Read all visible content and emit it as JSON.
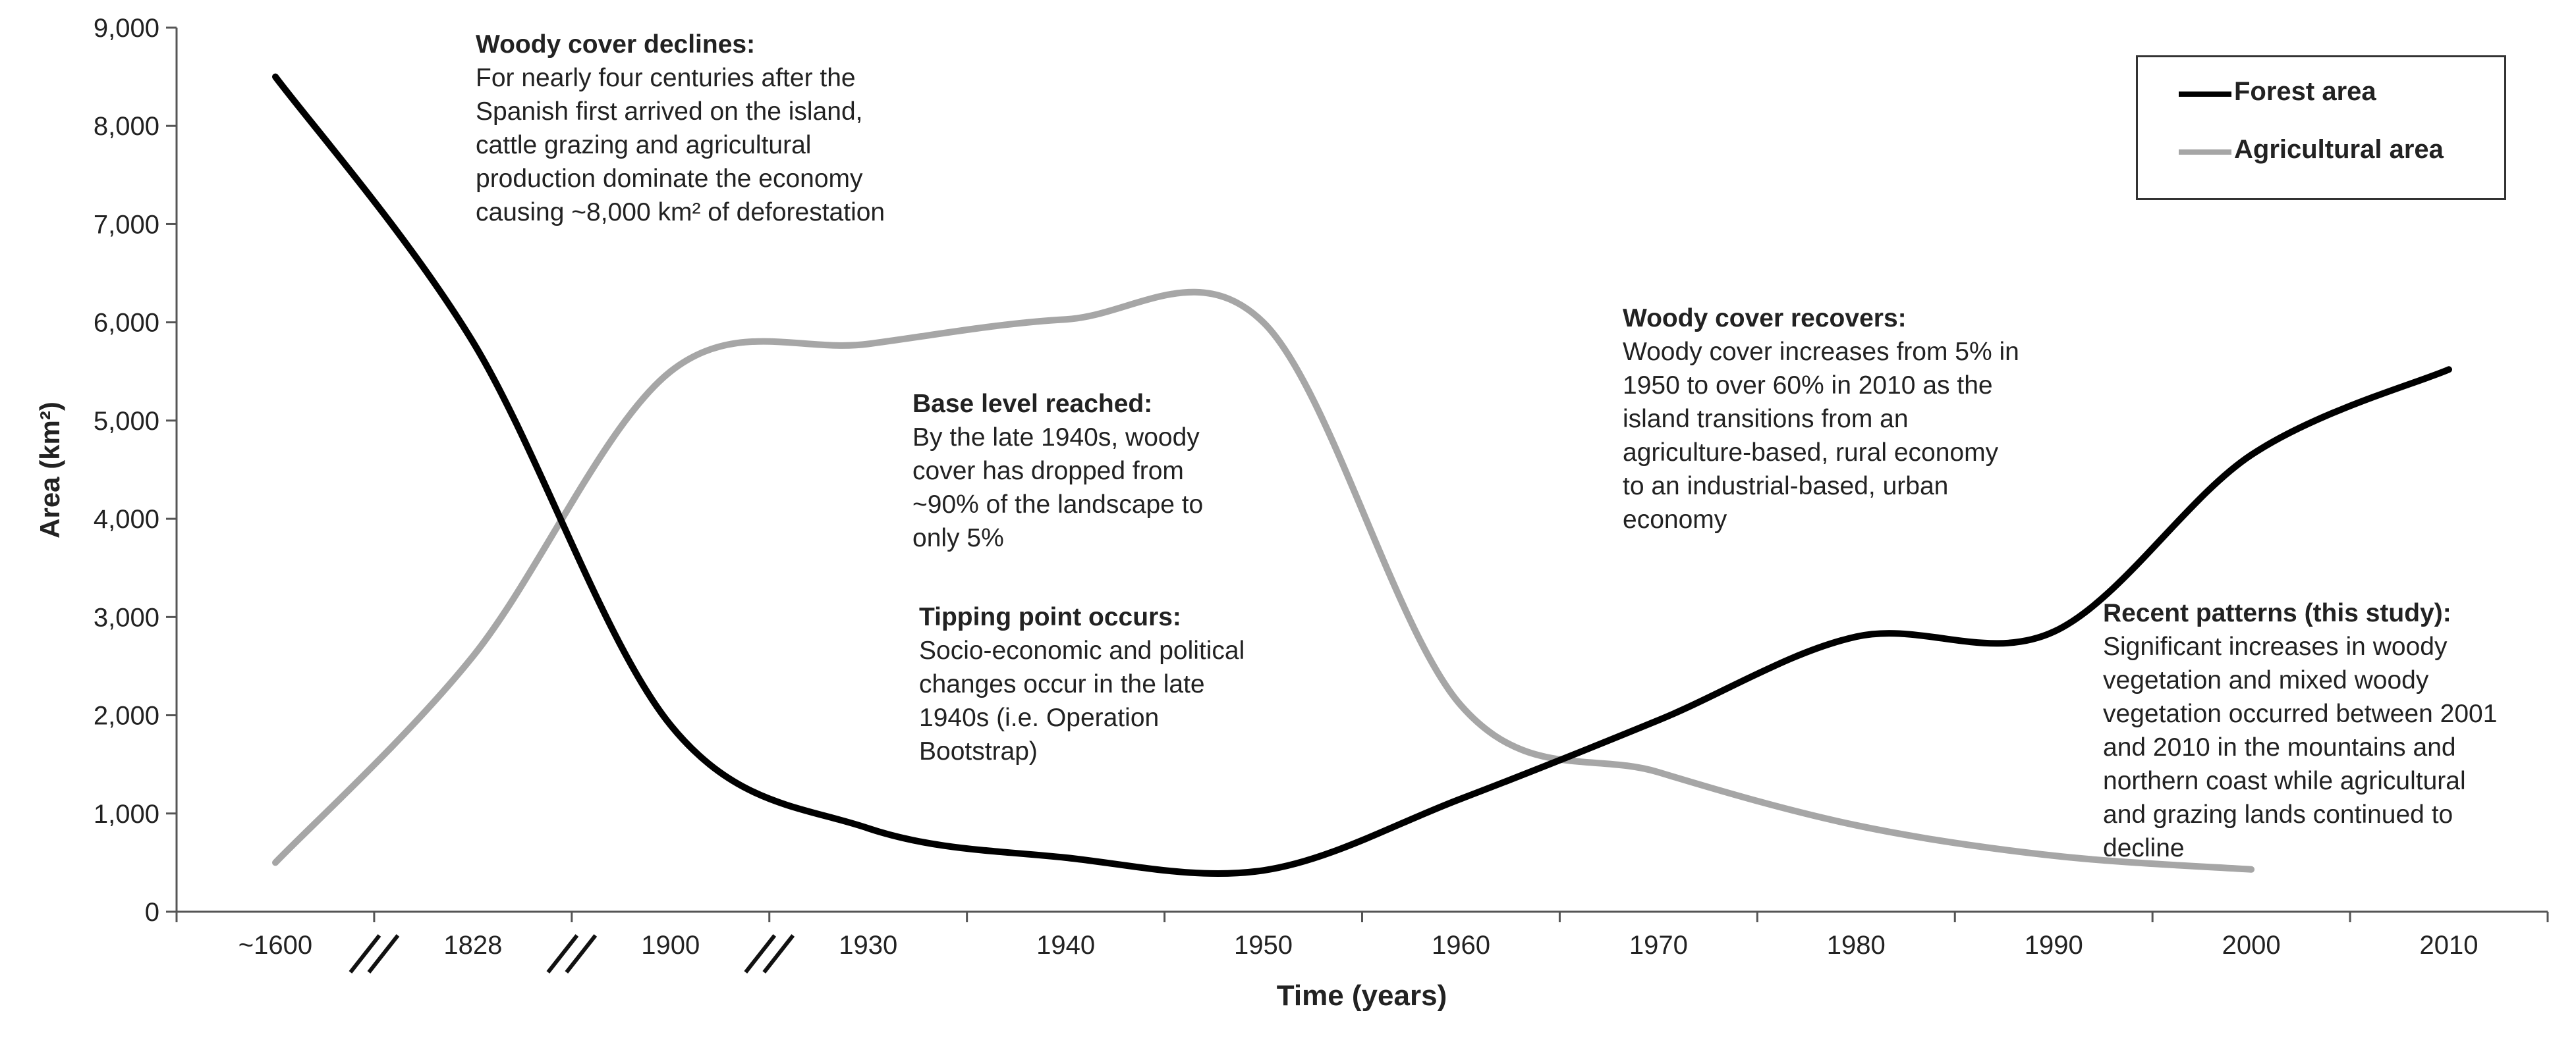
{
  "chart_data": {
    "type": "line",
    "xlabel": "Time (years)",
    "ylabel": "Area (km²)",
    "ylim": [
      0,
      9000
    ],
    "y_ticks": [
      0,
      1000,
      2000,
      3000,
      4000,
      5000,
      6000,
      7000,
      8000,
      9000
    ],
    "y_tick_labels": [
      "0",
      "1,000",
      "2,000",
      "3,000",
      "4,000",
      "5,000",
      "6,000",
      "7,000",
      "8,000",
      "9,000"
    ],
    "x_tick_labels": [
      "~1600",
      "1828",
      "1900",
      "1930",
      "1940",
      "1950",
      "1960",
      "1970",
      "1980",
      "1990",
      "2000",
      "2010"
    ],
    "axis_breaks_after": [
      "~1600",
      "1828",
      "1900"
    ],
    "grid": false,
    "legend_position": "top-right",
    "series": [
      {
        "name": "Forest area",
        "color": "#000000",
        "points": [
          {
            "x": "~1600",
            "y": 8500
          },
          {
            "x": "1828",
            "y": 5800
          },
          {
            "x": "1900",
            "y": 1900
          },
          {
            "x": "1930",
            "y": 850
          },
          {
            "x": "1940",
            "y": 550
          },
          {
            "x": "1950",
            "y": 420
          },
          {
            "x": "1960",
            "y": 1150
          },
          {
            "x": "1970",
            "y": 1950
          },
          {
            "x": "1980",
            "y": 2800
          },
          {
            "x": "1990",
            "y": 2850
          },
          {
            "x": "2000",
            "y": 4650
          },
          {
            "x": "2010",
            "y": 5520
          }
        ]
      },
      {
        "name": "Agricultural area",
        "color": "#a6a6a6",
        "points": [
          {
            "x": "~1600",
            "y": 500
          },
          {
            "x": "1828",
            "y": 2600
          },
          {
            "x": "1900",
            "y": 5500
          },
          {
            "x": "1930",
            "y": 5780
          },
          {
            "x": "1940",
            "y": 6030
          },
          {
            "x": "1950",
            "y": 6000
          },
          {
            "x": "1960",
            "y": 2100
          },
          {
            "x": "1970",
            "y": 1420
          },
          {
            "x": "1980",
            "y": 880
          },
          {
            "x": "1990",
            "y": 570
          },
          {
            "x": "2000",
            "y": 430
          }
        ]
      }
    ],
    "annotations": [
      {
        "heading": "Woody cover declines:",
        "lines": [
          "For nearly four centuries after the",
          "Spanish first arrived on the island,",
          "cattle grazing and agricultural",
          "production dominate the economy",
          "causing ~8,000 km² of deforestation"
        ]
      },
      {
        "heading": "Base level reached:",
        "lines": [
          "By the late 1940s, woody",
          "cover has dropped from",
          "~90% of the landscape to",
          "only 5%"
        ]
      },
      {
        "heading": "Tipping point occurs:",
        "lines": [
          "Socio-economic and political",
          "changes occur in the late",
          "1940s (i.e. Operation",
          "Bootstrap)"
        ]
      },
      {
        "heading": "Woody cover recovers:",
        "lines": [
          "Woody cover increases from 5% in",
          "1950 to over 60% in 2010 as the",
          "island transitions from an",
          "agriculture-based, rural economy",
          "to an industrial-based, urban",
          "economy"
        ]
      },
      {
        "heading": "Recent patterns (this study):",
        "lines": [
          "Significant increases in woody",
          "vegetation and mixed woody",
          "vegetation occurred between 2001",
          "and 2010 in the mountains and",
          "northern coast while agricultural",
          "and grazing lands continued to",
          "decline"
        ]
      }
    ]
  }
}
